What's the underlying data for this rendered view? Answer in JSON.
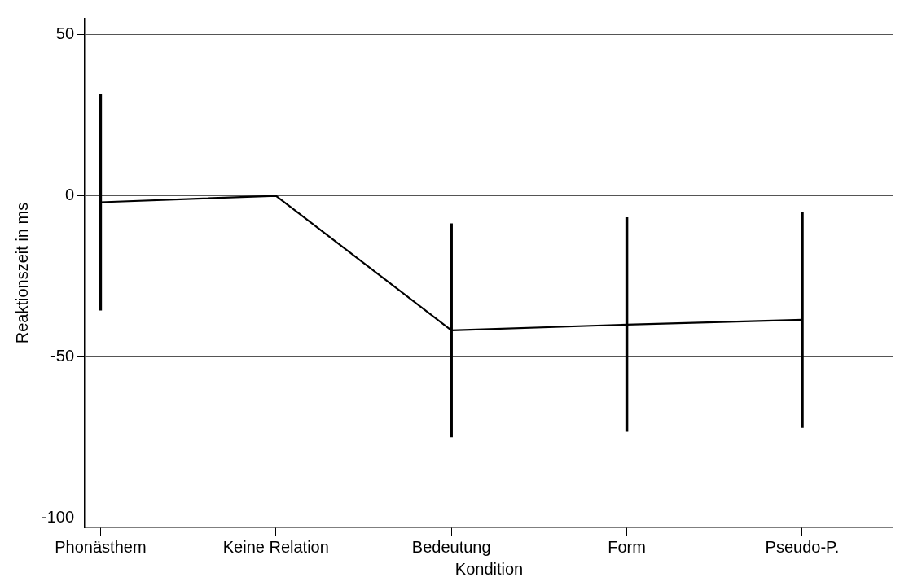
{
  "chart_data": {
    "type": "line",
    "xlabel": "Kondition",
    "ylabel": "Reaktionszeit in ms",
    "categories": [
      "Phonästhem",
      "Keine Relation",
      "Bedeutung",
      "Form",
      "Pseudo-P."
    ],
    "series": [
      {
        "color": "#000000",
        "values": [
          -2,
          0,
          -41.8,
          -40,
          -38.5
        ],
        "errors": [
          33.6,
          null,
          33.2,
          33.3,
          33.6
        ]
      }
    ],
    "ylim": [
      -103,
      55
    ],
    "yticks": [
      -100,
      -50,
      0,
      50
    ],
    "grid": "y",
    "marker": "none",
    "line_style": "solid"
  }
}
